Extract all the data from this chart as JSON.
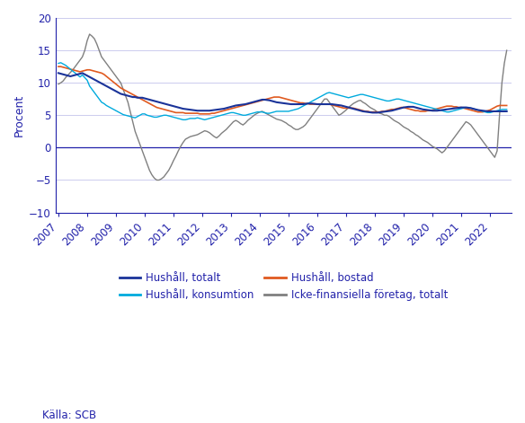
{
  "ylabel": "Procent",
  "ylim": [
    -10,
    20
  ],
  "yticks": [
    -10,
    -5,
    0,
    5,
    10,
    15,
    20
  ],
  "start_year": 2007,
  "end_year": 2022.75,
  "xtick_years": [
    2007,
    2008,
    2009,
    2010,
    2011,
    2012,
    2013,
    2014,
    2015,
    2016,
    2017,
    2018,
    2019,
    2020,
    2021,
    2022
  ],
  "source_text": "Källa: SCB",
  "legend_entries": [
    {
      "label": "Hushåll, totalt",
      "color": "#1a3399"
    },
    {
      "label": "Hushåll, konsumtion",
      "color": "#00aadd"
    },
    {
      "label": "Hushåll, bostad",
      "color": "#e05a20"
    },
    {
      "label": "Icke-finansiella företag, totalt",
      "color": "#808080"
    }
  ],
  "axis_color": "#2222aa",
  "grid_color": "#ccccee",
  "background_color": "#ffffff",
  "hushall_totalt": [
    11.5,
    11.4,
    11.3,
    11.2,
    11.1,
    11.0,
    11.1,
    11.2,
    11.3,
    11.4,
    11.5,
    11.3,
    11.1,
    10.9,
    10.7,
    10.5,
    10.3,
    10.1,
    9.9,
    9.7,
    9.5,
    9.3,
    9.1,
    8.9,
    8.7,
    8.5,
    8.3,
    8.2,
    8.1,
    8.0,
    7.9,
    7.8,
    7.8,
    7.7,
    7.7,
    7.7,
    7.6,
    7.5,
    7.4,
    7.3,
    7.2,
    7.1,
    7.0,
    6.9,
    6.8,
    6.7,
    6.6,
    6.5,
    6.4,
    6.3,
    6.2,
    6.1,
    6.0,
    5.95,
    5.9,
    5.85,
    5.8,
    5.75,
    5.7,
    5.7,
    5.7,
    5.7,
    5.7,
    5.7,
    5.75,
    5.8,
    5.85,
    5.9,
    5.95,
    6.0,
    6.1,
    6.2,
    6.3,
    6.4,
    6.5,
    6.55,
    6.6,
    6.65,
    6.7,
    6.8,
    6.9,
    7.0,
    7.1,
    7.2,
    7.3,
    7.4,
    7.4,
    7.35,
    7.3,
    7.2,
    7.1,
    7.0,
    6.95,
    6.9,
    6.85,
    6.8,
    6.75,
    6.7,
    6.7,
    6.7,
    6.7,
    6.7,
    6.7,
    6.75,
    6.8,
    6.8,
    6.8,
    6.75,
    6.7,
    6.7,
    6.7,
    6.7,
    6.7,
    6.7,
    6.7,
    6.65,
    6.6,
    6.55,
    6.5,
    6.4,
    6.3,
    6.2,
    6.1,
    6.0,
    5.9,
    5.8,
    5.7,
    5.6,
    5.55,
    5.5,
    5.45,
    5.4,
    5.4,
    5.4,
    5.45,
    5.5,
    5.55,
    5.6,
    5.65,
    5.7,
    5.8,
    5.9,
    6.0,
    6.1,
    6.2,
    6.25,
    6.3,
    6.3,
    6.3,
    6.2,
    6.1,
    6.0,
    5.9,
    5.85,
    5.8,
    5.75,
    5.7,
    5.7,
    5.7,
    5.75,
    5.8,
    5.85,
    5.9,
    5.95,
    6.0,
    6.05,
    6.1,
    6.15,
    6.2,
    6.2,
    6.2,
    6.15,
    6.1,
    6.0,
    5.9,
    5.8,
    5.75,
    5.7,
    5.65,
    5.6,
    5.6,
    5.6,
    5.6,
    5.6,
    5.6,
    5.6
  ],
  "hushall_konsumtion": [
    13.0,
    13.1,
    12.9,
    12.7,
    12.4,
    12.1,
    11.8,
    11.5,
    11.2,
    10.9,
    11.2,
    10.8,
    10.4,
    9.5,
    9.0,
    8.5,
    8.0,
    7.5,
    7.0,
    6.8,
    6.5,
    6.3,
    6.1,
    5.9,
    5.7,
    5.5,
    5.3,
    5.1,
    5.0,
    4.9,
    4.8,
    4.7,
    4.6,
    4.8,
    5.0,
    5.2,
    5.2,
    5.0,
    4.9,
    4.8,
    4.7,
    4.7,
    4.8,
    4.9,
    5.0,
    5.0,
    4.9,
    4.8,
    4.7,
    4.6,
    4.5,
    4.4,
    4.3,
    4.3,
    4.4,
    4.5,
    4.5,
    4.5,
    4.6,
    4.5,
    4.4,
    4.3,
    4.4,
    4.5,
    4.6,
    4.7,
    4.8,
    4.9,
    5.0,
    5.1,
    5.2,
    5.3,
    5.4,
    5.4,
    5.3,
    5.2,
    5.1,
    5.0,
    5.0,
    5.1,
    5.2,
    5.3,
    5.4,
    5.5,
    5.5,
    5.5,
    5.4,
    5.3,
    5.3,
    5.4,
    5.5,
    5.6,
    5.6,
    5.6,
    5.6,
    5.6,
    5.6,
    5.7,
    5.8,
    5.9,
    6.0,
    6.2,
    6.4,
    6.6,
    6.8,
    7.0,
    7.2,
    7.4,
    7.6,
    7.8,
    8.0,
    8.2,
    8.4,
    8.5,
    8.4,
    8.3,
    8.2,
    8.1,
    8.0,
    7.9,
    7.8,
    7.7,
    7.8,
    7.9,
    8.0,
    8.1,
    8.2,
    8.2,
    8.1,
    8.0,
    7.9,
    7.8,
    7.7,
    7.6,
    7.5,
    7.4,
    7.3,
    7.2,
    7.2,
    7.3,
    7.4,
    7.5,
    7.5,
    7.4,
    7.3,
    7.2,
    7.1,
    7.0,
    6.9,
    6.8,
    6.7,
    6.6,
    6.5,
    6.4,
    6.3,
    6.2,
    6.1,
    6.0,
    5.9,
    5.8,
    5.7,
    5.6,
    5.5,
    5.5,
    5.6,
    5.7,
    5.8,
    5.9,
    6.0,
    6.1,
    6.2,
    6.2,
    6.1,
    6.0,
    5.9,
    5.8,
    5.7,
    5.6,
    5.5,
    5.4,
    5.4,
    5.5,
    5.6,
    5.7,
    5.8,
    5.9
  ],
  "hushall_bostad": [
    12.5,
    12.5,
    12.4,
    12.3,
    12.2,
    12.1,
    12.0,
    11.9,
    11.8,
    11.7,
    11.8,
    11.9,
    12.0,
    12.0,
    11.9,
    11.8,
    11.7,
    11.6,
    11.5,
    11.3,
    11.0,
    10.7,
    10.4,
    10.1,
    9.8,
    9.5,
    9.2,
    9.0,
    8.8,
    8.6,
    8.4,
    8.2,
    8.0,
    7.8,
    7.6,
    7.4,
    7.2,
    7.0,
    6.8,
    6.6,
    6.4,
    6.2,
    6.1,
    6.0,
    5.9,
    5.8,
    5.7,
    5.6,
    5.5,
    5.4,
    5.4,
    5.4,
    5.4,
    5.3,
    5.3,
    5.3,
    5.3,
    5.3,
    5.3,
    5.2,
    5.2,
    5.2,
    5.2,
    5.2,
    5.3,
    5.3,
    5.4,
    5.5,
    5.6,
    5.7,
    5.8,
    5.9,
    6.0,
    6.1,
    6.2,
    6.3,
    6.4,
    6.5,
    6.6,
    6.7,
    6.8,
    6.9,
    7.0,
    7.1,
    7.2,
    7.3,
    7.4,
    7.5,
    7.6,
    7.7,
    7.8,
    7.8,
    7.8,
    7.7,
    7.6,
    7.5,
    7.4,
    7.3,
    7.2,
    7.1,
    7.0,
    6.9,
    6.9,
    6.8,
    6.8,
    6.7,
    6.7,
    6.7,
    6.7,
    6.7,
    6.7,
    6.7,
    6.7,
    6.7,
    6.6,
    6.5,
    6.4,
    6.3,
    6.2,
    6.1,
    6.1,
    6.1,
    6.1,
    6.1,
    6.0,
    5.9,
    5.8,
    5.7,
    5.6,
    5.6,
    5.5,
    5.5,
    5.5,
    5.5,
    5.5,
    5.6,
    5.6,
    5.7,
    5.8,
    5.9,
    5.9,
    6.0,
    6.1,
    6.2,
    6.2,
    6.1,
    6.0,
    5.9,
    5.8,
    5.7,
    5.7,
    5.6,
    5.6,
    5.6,
    5.7,
    5.7,
    5.8,
    5.9,
    6.0,
    6.1,
    6.2,
    6.3,
    6.4,
    6.4,
    6.4,
    6.3,
    6.3,
    6.2,
    6.2,
    6.1,
    6.0,
    5.9,
    5.8,
    5.7,
    5.6,
    5.5,
    5.5,
    5.5,
    5.6,
    5.7,
    5.8,
    6.0,
    6.2,
    6.4,
    6.5,
    6.5
  ],
  "icke_finansiella": [
    9.8,
    10.0,
    10.3,
    10.8,
    11.2,
    11.6,
    12.0,
    12.5,
    13.0,
    13.5,
    14.0,
    15.0,
    16.5,
    17.5,
    17.2,
    16.8,
    16.0,
    15.0,
    14.0,
    13.5,
    13.0,
    12.5,
    12.0,
    11.5,
    11.0,
    10.5,
    10.0,
    9.0,
    8.0,
    7.0,
    5.5,
    4.0,
    2.5,
    1.5,
    0.5,
    -0.5,
    -1.5,
    -2.5,
    -3.5,
    -4.2,
    -4.7,
    -5.0,
    -5.0,
    -4.8,
    -4.5,
    -4.0,
    -3.5,
    -2.8,
    -2.0,
    -1.3,
    -0.5,
    0.2,
    0.8,
    1.3,
    1.5,
    1.7,
    1.8,
    1.9,
    2.0,
    2.2,
    2.4,
    2.6,
    2.5,
    2.3,
    2.0,
    1.7,
    1.5,
    1.8,
    2.2,
    2.5,
    2.8,
    3.2,
    3.6,
    4.0,
    4.2,
    4.0,
    3.7,
    3.5,
    3.8,
    4.2,
    4.5,
    4.8,
    5.1,
    5.3,
    5.5,
    5.6,
    5.4,
    5.2,
    5.0,
    4.8,
    4.6,
    4.4,
    4.3,
    4.2,
    4.0,
    3.8,
    3.5,
    3.3,
    3.0,
    2.8,
    2.8,
    3.0,
    3.2,
    3.5,
    4.0,
    4.5,
    5.0,
    5.5,
    6.0,
    6.5,
    7.0,
    7.5,
    7.5,
    7.0,
    6.5,
    6.0,
    5.5,
    5.0,
    5.2,
    5.5,
    5.8,
    6.2,
    6.5,
    6.8,
    7.0,
    7.2,
    7.3,
    7.0,
    6.8,
    6.5,
    6.2,
    6.0,
    5.8,
    5.5,
    5.3,
    5.2,
    5.0,
    5.0,
    4.8,
    4.5,
    4.2,
    4.0,
    3.8,
    3.5,
    3.2,
    3.0,
    2.8,
    2.5,
    2.3,
    2.0,
    1.8,
    1.5,
    1.2,
    1.0,
    0.8,
    0.5,
    0.2,
    0.0,
    -0.2,
    -0.5,
    -0.8,
    -0.5,
    0.0,
    0.5,
    1.0,
    1.5,
    2.0,
    2.5,
    3.0,
    3.5,
    4.0,
    3.8,
    3.5,
    3.0,
    2.5,
    2.0,
    1.5,
    1.0,
    0.5,
    0.0,
    -0.5,
    -1.0,
    -1.5,
    -0.5,
    5.0,
    10.0,
    13.0,
    15.0
  ]
}
